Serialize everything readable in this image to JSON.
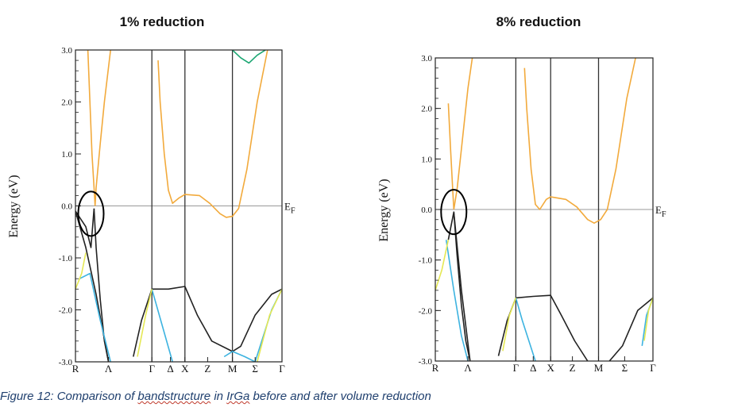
{
  "caption": {
    "prefix": "Figure 12: Comparison of ",
    "word1": "bandstructure",
    "middle": " in ",
    "word2": "IrGa",
    "suffix": " before and after volume reduction"
  },
  "colors": {
    "orange": "#F2AA3C",
    "green": "#1BA672",
    "black": "#222222",
    "blue": "#3DB3E0",
    "yellow": "#E5E854",
    "fermi": "#999999"
  },
  "chart_data": [
    {
      "type": "line",
      "title": "1% reduction",
      "ylabel": "Energy (eV)",
      "ylim": [
        -3.0,
        3.0
      ],
      "yticks": [
        "3.0",
        "2.0",
        "1.0",
        "0.0",
        "-1.0",
        "-2.0",
        "-3.0"
      ],
      "ytick_values": [
        3,
        2,
        1,
        0,
        -1,
        -2,
        -3
      ],
      "fermi_label": "EF",
      "kpoints": [
        "R",
        "Λ",
        "Γ",
        "Δ",
        "X",
        "Z",
        "M",
        "Σ",
        "Γ"
      ],
      "kpoint_positions": [
        0,
        0.16,
        0.37,
        0.46,
        0.53,
        0.64,
        0.76,
        0.87,
        1.0
      ],
      "vertical_lines": [
        0.37,
        0.53,
        0.76
      ],
      "circle": {
        "x": 0.075,
        "y": -0.15
      },
      "series": [
        {
          "color": "orange",
          "points": [
            [
              0.06,
              3.0
            ],
            [
              0.07,
              2.0
            ],
            [
              0.08,
              1.0
            ],
            [
              0.09,
              0.35
            ],
            [
              0.095,
              0.0
            ]
          ]
        },
        {
          "color": "orange",
          "points": [
            [
              0.095,
              0.0
            ],
            [
              0.1,
              0.35
            ],
            [
              0.12,
              1.2
            ],
            [
              0.14,
              2.0
            ],
            [
              0.17,
              3.0
            ]
          ]
        },
        {
          "color": "orange",
          "points": [
            [
              0.4,
              2.8
            ],
            [
              0.41,
              2.0
            ],
            [
              0.43,
              1.0
            ],
            [
              0.45,
              0.3
            ],
            [
              0.47,
              0.05
            ],
            [
              0.5,
              0.15
            ],
            [
              0.53,
              0.22
            ],
            [
              0.6,
              0.2
            ],
            [
              0.65,
              0.05
            ],
            [
              0.7,
              -0.15
            ],
            [
              0.73,
              -0.22
            ],
            [
              0.76,
              -0.2
            ],
            [
              0.79,
              -0.05
            ],
            [
              0.83,
              0.7
            ],
            [
              0.88,
              2.0
            ],
            [
              0.93,
              3.0
            ]
          ]
        },
        {
          "color": "black",
          "points": [
            [
              0.0,
              -0.1
            ],
            [
              0.05,
              -0.4
            ],
            [
              0.075,
              -0.8
            ],
            [
              0.09,
              -0.05
            ]
          ]
        },
        {
          "color": "black",
          "points": [
            [
              0.09,
              -0.05
            ],
            [
              0.1,
              -0.8
            ],
            [
              0.12,
              -1.8
            ],
            [
              0.14,
              -2.6
            ],
            [
              0.16,
              -3.0
            ]
          ]
        },
        {
          "color": "black",
          "points": [
            [
              0.0,
              -0.1
            ],
            [
              0.05,
              -0.8
            ],
            [
              0.1,
              -1.7
            ],
            [
              0.16,
              -3.0
            ]
          ]
        },
        {
          "color": "black",
          "points": [
            [
              0.28,
              -2.9
            ],
            [
              0.32,
              -2.2
            ],
            [
              0.37,
              -1.6
            ],
            [
              0.45,
              -1.6
            ],
            [
              0.53,
              -1.55
            ],
            [
              0.59,
              -2.1
            ],
            [
              0.66,
              -2.6
            ],
            [
              0.76,
              -2.8
            ],
            [
              0.8,
              -2.7
            ],
            [
              0.87,
              -2.1
            ],
            [
              0.95,
              -1.7
            ],
            [
              1.0,
              -1.6
            ]
          ]
        },
        {
          "color": "blue",
          "points": [
            [
              0.02,
              -1.4
            ],
            [
              0.07,
              -1.3
            ],
            [
              0.12,
              -2.2
            ],
            [
              0.17,
              -3.0
            ]
          ]
        },
        {
          "color": "blue",
          "points": [
            [
              0.37,
              -1.6
            ],
            [
              0.42,
              -2.3
            ],
            [
              0.47,
              -3.0
            ]
          ]
        },
        {
          "color": "blue",
          "points": [
            [
              0.72,
              -2.9
            ],
            [
              0.76,
              -2.8
            ],
            [
              0.82,
              -2.9
            ],
            [
              0.87,
              -3.0
            ],
            [
              0.95,
              -2.0
            ],
            [
              1.0,
              -1.6
            ]
          ]
        },
        {
          "color": "yellow",
          "points": [
            [
              0.0,
              -1.6
            ],
            [
              0.03,
              -1.3
            ],
            [
              0.05,
              -0.9
            ]
          ]
        },
        {
          "color": "yellow",
          "points": [
            [
              0.3,
              -2.9
            ],
            [
              0.34,
              -2.1
            ],
            [
              0.37,
              -1.6
            ]
          ]
        },
        {
          "color": "yellow",
          "points": [
            [
              0.88,
              -3.0
            ],
            [
              0.94,
              -2.1
            ],
            [
              1.0,
              -1.6
            ]
          ]
        },
        {
          "color": "green",
          "points": [
            [
              0.76,
              3.0
            ],
            [
              0.8,
              2.85
            ],
            [
              0.84,
              2.75
            ],
            [
              0.88,
              2.9
            ],
            [
              0.92,
              3.0
            ]
          ]
        }
      ]
    },
    {
      "type": "line",
      "title": "8% reduction",
      "ylabel": "Energy (eV)",
      "ylim": [
        -3.0,
        3.0
      ],
      "yticks": [
        "3.0",
        "2.0",
        "1.0",
        "0.0",
        "-1.0",
        "-2.0",
        "-3.0"
      ],
      "ytick_values": [
        3,
        2,
        1,
        0,
        -1,
        -2,
        -3
      ],
      "fermi_label": "EF",
      "kpoints": [
        "R",
        "Λ",
        "Γ",
        "Δ",
        "X",
        "Z",
        "M",
        "Σ",
        "Γ"
      ],
      "kpoint_positions": [
        0,
        0.15,
        0.37,
        0.45,
        0.53,
        0.63,
        0.75,
        0.87,
        1.0
      ],
      "vertical_lines": [
        0.37,
        0.53,
        0.75
      ],
      "circle": {
        "x": 0.085,
        "y": -0.05
      },
      "series": [
        {
          "color": "orange",
          "points": [
            [
              0.06,
              2.1
            ],
            [
              0.07,
              1.2
            ],
            [
              0.08,
              0.4
            ],
            [
              0.085,
              0.0
            ]
          ]
        },
        {
          "color": "orange",
          "points": [
            [
              0.085,
              0.0
            ],
            [
              0.1,
              0.4
            ],
            [
              0.12,
              1.2
            ],
            [
              0.15,
              2.4
            ],
            [
              0.17,
              3.0
            ]
          ]
        },
        {
          "color": "orange",
          "points": [
            [
              0.41,
              2.8
            ],
            [
              0.42,
              2.0
            ],
            [
              0.44,
              0.8
            ],
            [
              0.46,
              0.1
            ],
            [
              0.48,
              0.0
            ],
            [
              0.51,
              0.2
            ],
            [
              0.53,
              0.25
            ],
            [
              0.6,
              0.2
            ],
            [
              0.65,
              0.05
            ],
            [
              0.7,
              -0.2
            ],
            [
              0.73,
              -0.27
            ],
            [
              0.76,
              -0.2
            ],
            [
              0.79,
              0.0
            ],
            [
              0.83,
              0.8
            ],
            [
              0.88,
              2.2
            ],
            [
              0.92,
              3.0
            ]
          ]
        },
        {
          "color": "black",
          "points": [
            [
              0.06,
              -0.6
            ],
            [
              0.085,
              -0.05
            ],
            [
              0.1,
              -0.9
            ],
            [
              0.12,
              -1.9
            ],
            [
              0.14,
              -2.6
            ],
            [
              0.16,
              -3.0
            ]
          ]
        },
        {
          "color": "black",
          "points": [
            [
              0.085,
              -0.05
            ],
            [
              0.12,
              -1.6
            ],
            [
              0.16,
              -3.0
            ]
          ]
        },
        {
          "color": "black",
          "points": [
            [
              0.29,
              -2.9
            ],
            [
              0.33,
              -2.2
            ],
            [
              0.37,
              -1.75
            ],
            [
              0.45,
              -1.72
            ],
            [
              0.53,
              -1.7
            ],
            [
              0.58,
              -2.1
            ],
            [
              0.64,
              -2.6
            ],
            [
              0.7,
              -3.0
            ]
          ]
        },
        {
          "color": "black",
          "points": [
            [
              0.8,
              -3.0
            ],
            [
              0.86,
              -2.7
            ],
            [
              0.93,
              -2.0
            ],
            [
              1.0,
              -1.75
            ]
          ]
        },
        {
          "color": "blue",
          "points": [
            [
              0.05,
              -0.6
            ],
            [
              0.085,
              -1.6
            ],
            [
              0.12,
              -2.5
            ],
            [
              0.15,
              -3.0
            ]
          ]
        },
        {
          "color": "blue",
          "points": [
            [
              0.37,
              -1.75
            ],
            [
              0.4,
              -2.2
            ],
            [
              0.46,
              -3.0
            ]
          ]
        },
        {
          "color": "blue",
          "points": [
            [
              0.95,
              -2.7
            ],
            [
              0.97,
              -2.1
            ],
            [
              1.0,
              -1.75
            ]
          ]
        },
        {
          "color": "yellow",
          "points": [
            [
              0.0,
              -1.6
            ],
            [
              0.03,
              -1.2
            ],
            [
              0.06,
              -0.6
            ]
          ]
        },
        {
          "color": "yellow",
          "points": [
            [
              0.31,
              -2.8
            ],
            [
              0.34,
              -2.1
            ],
            [
              0.37,
              -1.75
            ]
          ]
        },
        {
          "color": "yellow",
          "points": [
            [
              0.96,
              -2.6
            ],
            [
              0.98,
              -2.0
            ],
            [
              1.0,
              -1.75
            ]
          ]
        }
      ]
    }
  ]
}
